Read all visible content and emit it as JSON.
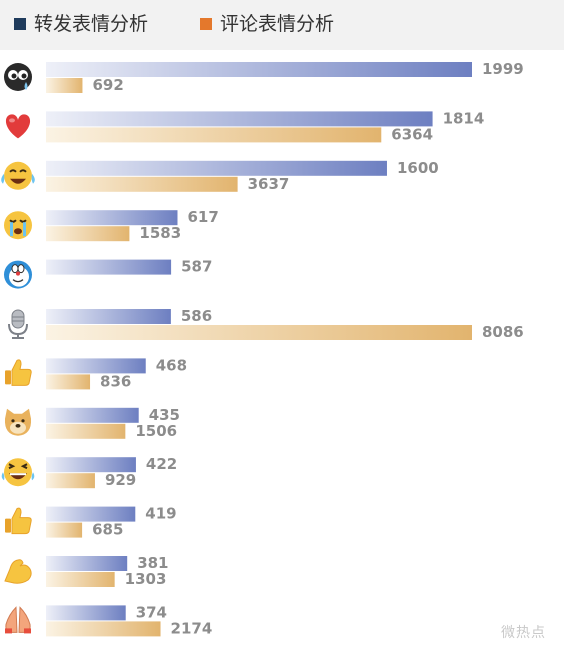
{
  "legend": {
    "repost_label": "转发表情分析",
    "comment_label": "评论表情分析"
  },
  "colors": {
    "repost_bar": "#6d7fc1",
    "comment_bar": "#e2b46e",
    "repost_legend": "#1f3b5c",
    "comment_legend": "#e4782c",
    "value_text": "#8c8c8c"
  },
  "watermark": "微热点",
  "chart_data": {
    "type": "bar",
    "orientation": "horizontal",
    "categories": [
      "doge-eyes-icon",
      "heart-icon",
      "laugh-cry-icon",
      "crying-face-icon",
      "doraemon-icon",
      "microphone-icon",
      "thumbs-up-icon",
      "doge-dog-icon",
      "grin-tears-icon",
      "thumbs-up-small-icon",
      "flexed-arm-icon",
      "praying-hands-icon"
    ],
    "series": [
      {
        "name": "转发表情分析",
        "values": [
          1999,
          1814,
          1600,
          617,
          587,
          586,
          468,
          435,
          422,
          419,
          381,
          374
        ]
      },
      {
        "name": "评论表情分析",
        "values": [
          692,
          6364,
          3637,
          1583,
          null,
          8086,
          836,
          1506,
          929,
          685,
          1303,
          2174
        ]
      }
    ]
  }
}
